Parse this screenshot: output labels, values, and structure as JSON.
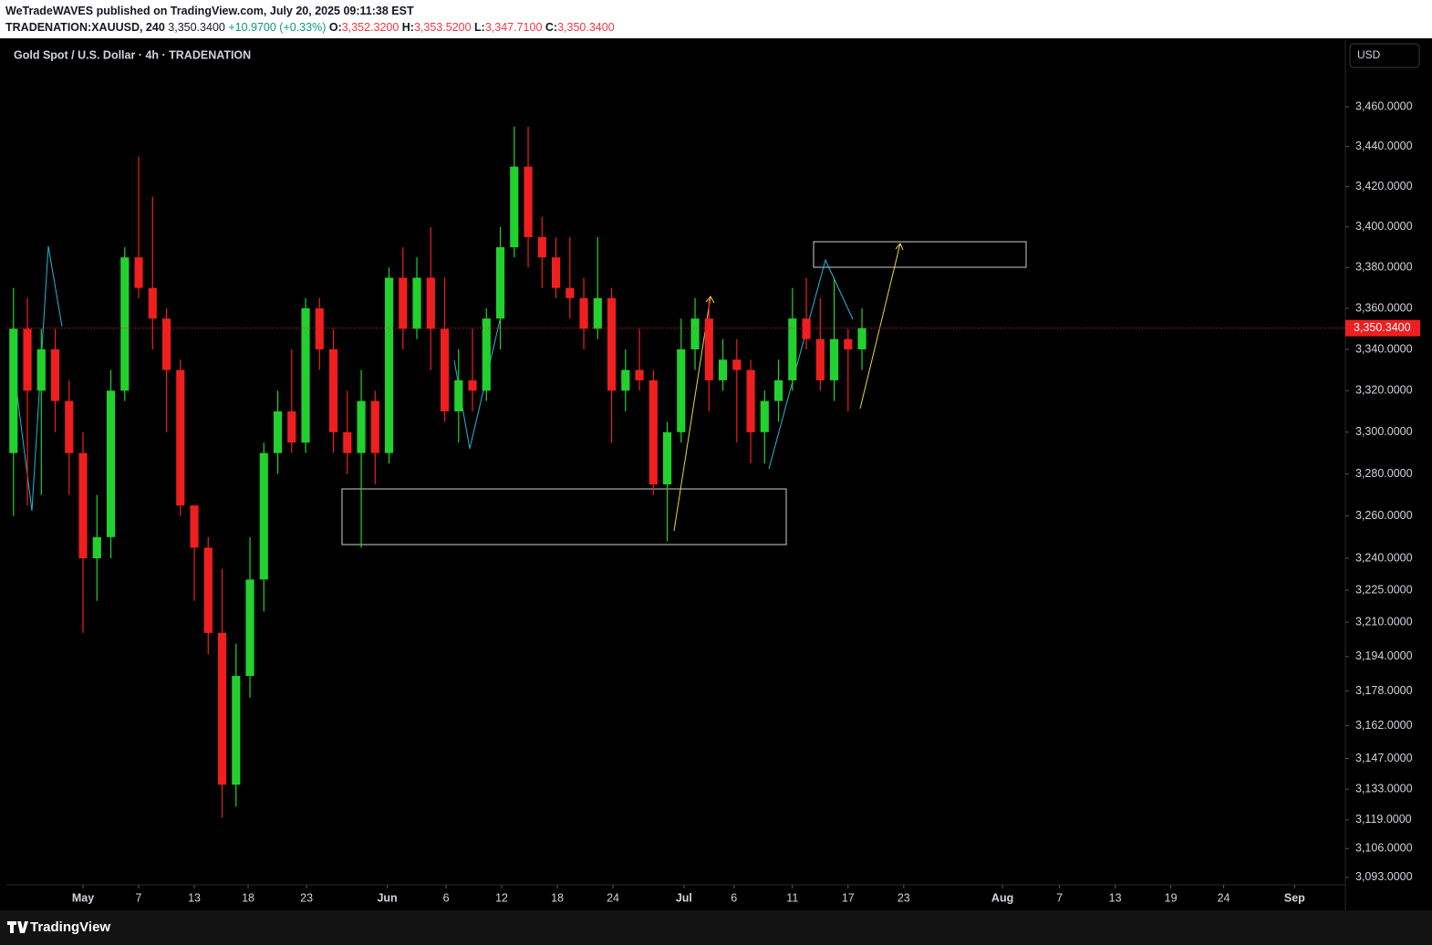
{
  "header": {
    "title": "WeTradeWAVES published on TradingView.com, July 20, 2025 09:11:38 EST",
    "symbol": "TRADENATION:XAUUSD, 240",
    "price": "3,350.3400",
    "change": "+10.9700 (+0.33%)",
    "o_label": "O:",
    "o": "3,352.3200",
    "h_label": "H:",
    "h": "3,353.5200",
    "l_label": "L:",
    "l": "3,347.7100",
    "c_label": "C:",
    "c": "3,350.3400"
  },
  "chart_data": {
    "type": "candlestick",
    "legend": "Gold Spot / U.S. Dollar · 4h · TRADENATION",
    "currency": "USD",
    "log_scale": true,
    "up_color": "#22d12e",
    "down_color": "#ef1f1f",
    "x": [
      -5,
      -4,
      -3,
      -2,
      -1,
      0,
      1,
      2,
      3,
      4,
      5,
      6,
      7,
      8,
      9,
      10,
      11,
      12,
      13,
      14,
      15,
      16,
      17,
      18,
      19,
      20,
      21,
      22,
      23,
      24,
      25,
      26,
      27,
      28,
      29,
      30,
      31,
      32,
      33,
      34,
      35,
      36,
      37,
      38,
      39,
      40,
      41,
      42,
      43,
      44,
      45,
      46,
      47,
      48,
      49,
      50,
      51,
      52,
      53,
      54,
      55,
      56
    ],
    "open": [
      3290,
      3350,
      3320,
      3340,
      3315,
      3290,
      3240,
      3250,
      3320,
      3385,
      3370,
      3355,
      3330,
      3265,
      3245,
      3205,
      3135,
      3185,
      3230,
      3290,
      3310,
      3295,
      3360,
      3340,
      3300,
      3290,
      3315,
      3290,
      3375,
      3350,
      3375,
      3350,
      3310,
      3325,
      3320,
      3355,
      3390,
      3430,
      3395,
      3385,
      3370,
      3365,
      3350,
      3365,
      3320,
      3330,
      3325,
      3275,
      3300,
      3340,
      3355,
      3325,
      3335,
      3330,
      3300,
      3315,
      3325,
      3355,
      3345,
      3325,
      3345,
      3340
    ],
    "high": [
      3370,
      3365,
      3350,
      3350,
      3325,
      3300,
      3270,
      3330,
      3390,
      3435,
      3415,
      3360,
      3335,
      3265,
      3250,
      3235,
      3200,
      3250,
      3295,
      3320,
      3340,
      3365,
      3365,
      3350,
      3320,
      3330,
      3320,
      3380,
      3390,
      3385,
      3400,
      3375,
      3340,
      3350,
      3360,
      3400,
      3450,
      3450,
      3405,
      3395,
      3395,
      3375,
      3395,
      3370,
      3340,
      3350,
      3330,
      3305,
      3355,
      3365,
      3365,
      3345,
      3345,
      3335,
      3320,
      3335,
      3370,
      3375,
      3365,
      3375,
      3350,
      3360
    ],
    "low": [
      3260,
      3265,
      3270,
      3300,
      3270,
      3205,
      3220,
      3240,
      3315,
      3365,
      3340,
      3300,
      3260,
      3220,
      3195,
      3120,
      3125,
      3175,
      3215,
      3280,
      3290,
      3290,
      3330,
      3290,
      3280,
      3245,
      3275,
      3285,
      3340,
      3345,
      3330,
      3305,
      3295,
      3310,
      3315,
      3340,
      3385,
      3380,
      3370,
      3365,
      3355,
      3340,
      3345,
      3295,
      3310,
      3320,
      3270,
      3248,
      3295,
      3330,
      3310,
      3320,
      3295,
      3285,
      3285,
      3305,
      3320,
      3340,
      3320,
      3315,
      3310,
      3330
    ],
    "close": [
      3350,
      3320,
      3340,
      3315,
      3290,
      3240,
      3250,
      3320,
      3385,
      3370,
      3355,
      3330,
      3265,
      3245,
      3205,
      3135,
      3185,
      3230,
      3290,
      3310,
      3295,
      3360,
      3340,
      3300,
      3290,
      3315,
      3290,
      3375,
      3350,
      3375,
      3350,
      3310,
      3325,
      3320,
      3355,
      3390,
      3430,
      3395,
      3385,
      3370,
      3365,
      3350,
      3365,
      3320,
      3330,
      3325,
      3275,
      3300,
      3340,
      3355,
      3325,
      3335,
      3330,
      3300,
      3315,
      3325,
      3355,
      3345,
      3325,
      3345,
      3340,
      3350.34
    ],
    "last_price": {
      "value": 3350.34,
      "label": "3,350.3400"
    },
    "xlim": [
      -5.51,
      90.75
    ],
    "xticks": [
      {
        "value": 0,
        "label": "May"
      },
      {
        "value": 4,
        "label": "7"
      },
      {
        "value": 8,
        "label": "13"
      },
      {
        "value": 11.87,
        "label": "18"
      },
      {
        "value": 16.07,
        "label": "23"
      },
      {
        "value": 21.87,
        "label": "Jun"
      },
      {
        "value": 26.1,
        "label": "6"
      },
      {
        "value": 30.1,
        "label": "12"
      },
      {
        "value": 34.1,
        "label": "18"
      },
      {
        "value": 38.1,
        "label": "24"
      },
      {
        "value": 43.2,
        "label": "Jul"
      },
      {
        "value": 46.8,
        "label": "6"
      },
      {
        "value": 51,
        "label": "11"
      },
      {
        "value": 55,
        "label": "17"
      },
      {
        "value": 59,
        "label": "23"
      },
      {
        "value": 66.1,
        "label": "Aug"
      },
      {
        "value": 70.2,
        "label": "7"
      },
      {
        "value": 74.2,
        "label": "13"
      },
      {
        "value": 78.2,
        "label": "19"
      },
      {
        "value": 82,
        "label": "24"
      },
      {
        "value": 87.1,
        "label": "Sep"
      }
    ],
    "ylim": [
      3090.5,
      3493.7
    ],
    "yticks": [
      {
        "value": 3460,
        "label": "3,460.0000"
      },
      {
        "value": 3440,
        "label": "3,440.0000"
      },
      {
        "value": 3420,
        "label": "3,420.0000"
      },
      {
        "value": 3400,
        "label": "3,400.0000"
      },
      {
        "value": 3380,
        "label": "3,380.0000"
      },
      {
        "value": 3360,
        "label": "3,360.0000"
      },
      {
        "value": 3340,
        "label": "3,340.0000"
      },
      {
        "value": 3320,
        "label": "3,320.0000"
      },
      {
        "value": 3300,
        "label": "3,300.0000"
      },
      {
        "value": 3280,
        "label": "3,280.0000"
      },
      {
        "value": 3260,
        "label": "3,260.0000"
      },
      {
        "value": 3240,
        "label": "3,240.0000"
      },
      {
        "value": 3225,
        "label": "3,225.0000"
      },
      {
        "value": 3210,
        "label": "3,210.0000"
      },
      {
        "value": 3194,
        "label": "3,194.0000"
      },
      {
        "value": 3178,
        "label": "3,178.0000"
      },
      {
        "value": 3162,
        "label": "3,162.0000"
      },
      {
        "value": 3147,
        "label": "3,147.0000"
      },
      {
        "value": 3133,
        "label": "3,133.0000"
      },
      {
        "value": 3119,
        "label": "3,119.0000"
      },
      {
        "value": 3106,
        "label": "3,106.0000"
      },
      {
        "value": 3093,
        "label": "3,093.0000"
      }
    ]
  },
  "footer": {
    "brand": "TradingView"
  }
}
